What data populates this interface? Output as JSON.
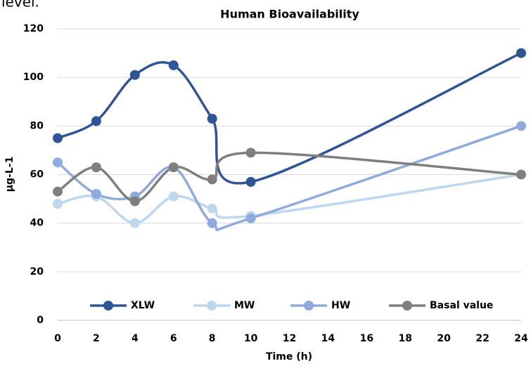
{
  "caption_fragment": "level.",
  "chart_data": {
    "type": "line",
    "title": "Human Bioavailability",
    "x_label": "Time (h)",
    "y_label": "µg-L-1",
    "x": [
      0,
      2,
      4,
      6,
      8,
      10,
      24
    ],
    "series": [
      {
        "name": "XLW",
        "color": "#2f5597",
        "values": [
          75,
          82,
          101,
          105,
          83,
          57,
          110
        ]
      },
      {
        "name": "MW",
        "color": "#bdd7ee",
        "values": [
          48,
          51,
          40,
          51,
          46,
          43,
          60
        ]
      },
      {
        "name": "HW",
        "color": "#8faadc",
        "values": [
          65,
          52,
          51,
          63,
          40,
          42,
          80
        ]
      },
      {
        "name": "Basal value",
        "color": "#7f7f7f",
        "values": [
          53,
          63,
          49,
          63,
          58,
          69,
          60
        ]
      }
    ],
    "xlim": [
      0,
      24
    ],
    "xticks": [
      0,
      2,
      4,
      6,
      8,
      10,
      12,
      14,
      16,
      18,
      20,
      22,
      24
    ],
    "ylim": [
      0,
      120
    ],
    "yticks": [
      0,
      20,
      40,
      60,
      80,
      100,
      120
    ],
    "grid": true,
    "smooth": true,
    "legend": "bottom"
  }
}
